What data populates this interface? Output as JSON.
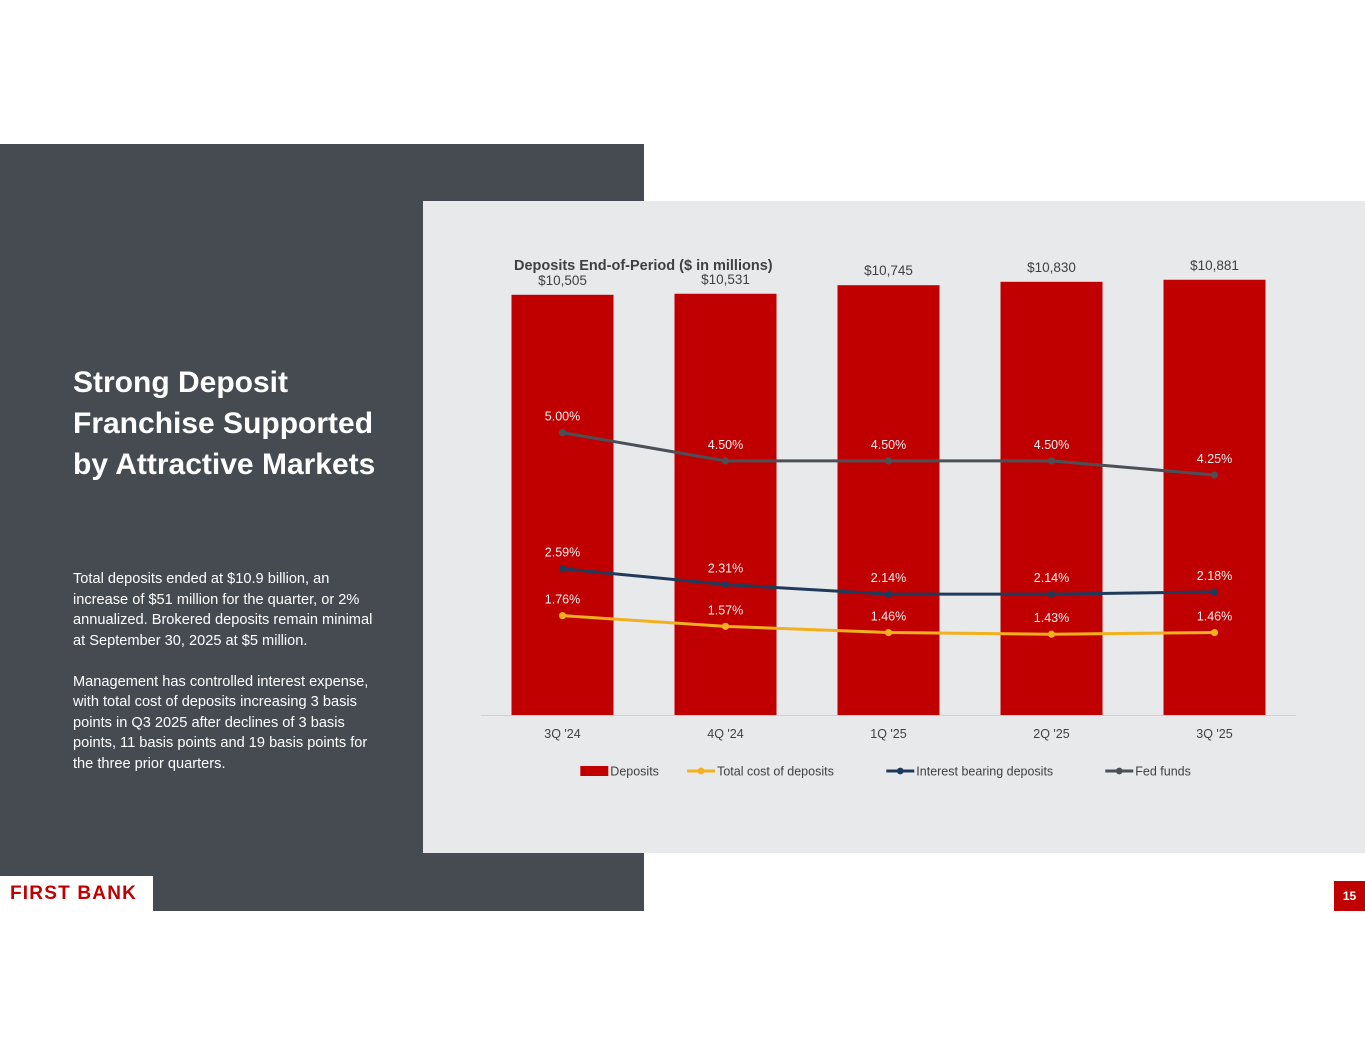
{
  "slide": {
    "title": "Strong Deposit Franchise Supported by Attractive Markets",
    "paragraphs": [
      "Total deposits ended at $10.9 billion, an increase of $51 million for the quarter, or 2% annualized. Brokered deposits remain minimal at September 30, 2025 at $5 million.",
      "Management has controlled interest expense, with total cost of deposits increasing 3 basis points in Q3 2025 after declines of 3 basis points, 11 basis points and 19 basis points for the three prior quarters."
    ],
    "logo": "FIRST BANK",
    "page_number": "15"
  },
  "colors": {
    "bars": "#c00000",
    "total_cost": "#f2b01e",
    "interest_bearing": "#1f3b5c",
    "fed_funds": "#4b5057",
    "label_light": "#f2f2f2",
    "label_dark": "#404040"
  },
  "chart_data": {
    "type": "bar",
    "title": "Deposits End-of-Period ($ in millions)",
    "categories": [
      "3Q '24",
      "4Q '24",
      "1Q '25",
      "2Q '25",
      "3Q '25"
    ],
    "ylim": [
      0,
      12000
    ],
    "bars": {
      "name": "Deposits",
      "values": [
        10505,
        10531,
        10745,
        10830,
        10881
      ],
      "labels": [
        "$10,505",
        "$10,531",
        "$10,745",
        "$10,830",
        "$10,881"
      ]
    },
    "lines_ylim": [
      0,
      8.5
    ],
    "series": [
      {
        "name": "Total cost of deposits",
        "values": [
          1.76,
          1.57,
          1.46,
          1.43,
          1.46
        ],
        "labels": [
          "1.76%",
          "1.57%",
          "1.46%",
          "1.43%",
          "1.46%"
        ]
      },
      {
        "name": "Interest bearing deposits",
        "values": [
          2.59,
          2.31,
          2.14,
          2.14,
          2.18
        ],
        "labels": [
          "2.59%",
          "2.31%",
          "2.14%",
          "2.14%",
          "2.18%"
        ]
      },
      {
        "name": "Fed funds",
        "values": [
          5.0,
          4.5,
          4.5,
          4.5,
          4.25
        ],
        "labels": [
          "5.00%",
          "4.50%",
          "4.50%",
          "4.50%",
          "4.25%"
        ]
      }
    ],
    "legend": [
      "Deposits",
      "Total cost of deposits",
      "Interest bearing deposits",
      "Fed funds"
    ],
    "legend_position": "bottom",
    "grid": false
  }
}
